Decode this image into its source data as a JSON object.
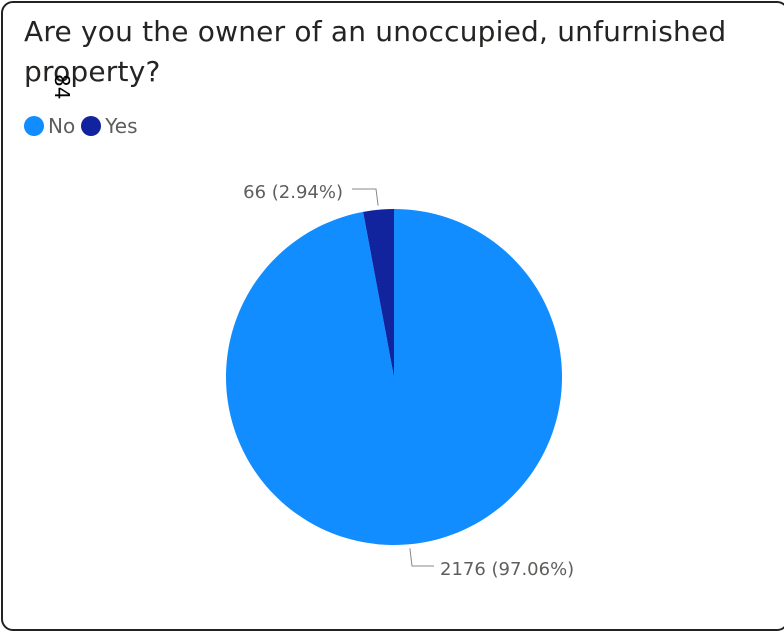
{
  "card": {
    "title": "Are you the owner of an unoccupied, unfurnished property?",
    "stray_mark": "84"
  },
  "chart_data": {
    "type": "pie",
    "title": "Are you the owner of an unoccupied, unfurnished property?",
    "legend_position": "top-left",
    "categories": [
      "No",
      "Yes"
    ],
    "values": [
      2176,
      66
    ],
    "percentages": [
      97.06,
      2.94
    ],
    "colors": [
      "#118DFF",
      "#12239E"
    ],
    "data_labels": [
      "2176 (97.06%)",
      "66 (2.94%)"
    ]
  }
}
